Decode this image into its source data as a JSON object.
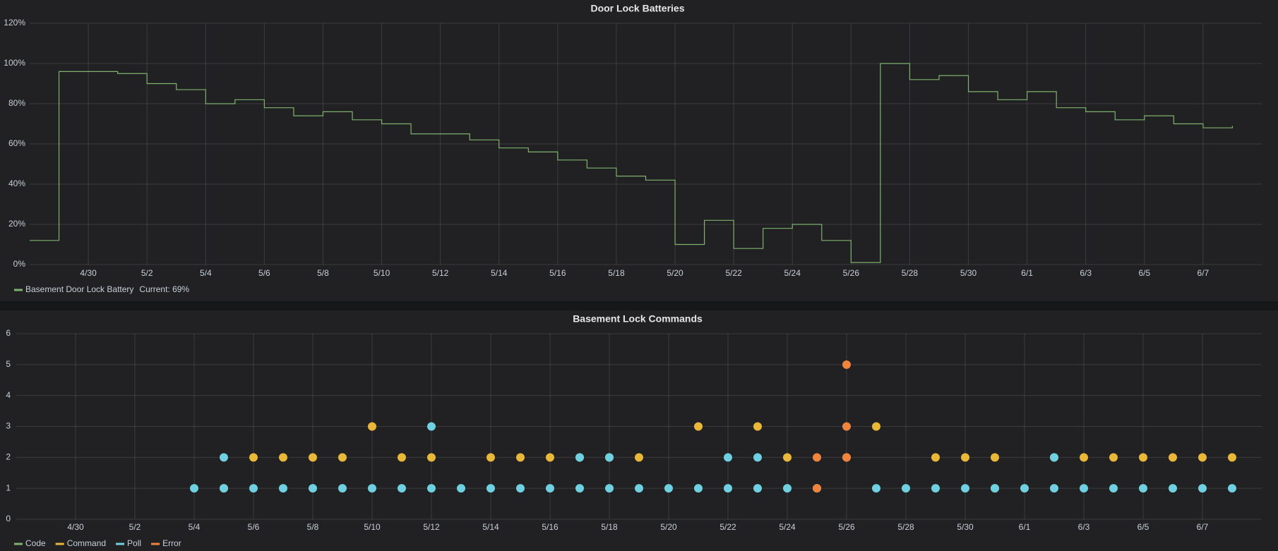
{
  "chart_data": [
    {
      "type": "line",
      "title": "Door Lock Batteries",
      "steps": true,
      "x": [
        "4/28",
        "4/29",
        "4/30",
        "5/1",
        "5/2",
        "5/3",
        "5/4",
        "5/5",
        "5/6",
        "5/7",
        "5/8",
        "5/9",
        "5/10",
        "5/11",
        "5/12",
        "5/13",
        "5/14",
        "5/15",
        "5/16",
        "5/17",
        "5/18",
        "5/19",
        "5/20",
        "5/21",
        "5/22",
        "5/23",
        "5/24",
        "5/25",
        "5/26",
        "5/27",
        "5/28",
        "5/29",
        "5/30",
        "5/31",
        "6/1",
        "6/2",
        "6/3",
        "6/4",
        "6/5",
        "6/6",
        "6/7",
        "6/8"
      ],
      "series": [
        {
          "name": "Basement Door Lock Battery",
          "color": "#7eb26d",
          "values": [
            12,
            96,
            96,
            95,
            90,
            87,
            80,
            82,
            78,
            74,
            76,
            72,
            70,
            65,
            65,
            62,
            58,
            56,
            52,
            48,
            44,
            42,
            10,
            22,
            8,
            18,
            20,
            12,
            1,
            100,
            92,
            94,
            86,
            82,
            86,
            78,
            76,
            72,
            74,
            70,
            68,
            69
          ]
        }
      ],
      "legend_current": "Current: 69%",
      "xlim": [
        "4/28",
        "6/9"
      ],
      "xticks": [
        "4/30",
        "5/2",
        "5/4",
        "5/6",
        "5/8",
        "5/10",
        "5/12",
        "5/14",
        "5/16",
        "5/18",
        "5/20",
        "5/22",
        "5/24",
        "5/26",
        "5/28",
        "5/30",
        "6/1",
        "6/3",
        "6/5",
        "6/7"
      ],
      "ylim": [
        0,
        120
      ],
      "yticks": [
        {
          "value": 0,
          "label": "0%"
        },
        {
          "value": 20,
          "label": "20%"
        },
        {
          "value": 40,
          "label": "40%"
        },
        {
          "value": 60,
          "label": "60%"
        },
        {
          "value": 80,
          "label": "80%"
        },
        {
          "value": 100,
          "label": "100%"
        },
        {
          "value": 120,
          "label": "120%"
        }
      ],
      "grid": true,
      "legend": "bottom-left"
    },
    {
      "type": "scatter",
      "title": "Basement Lock Commands",
      "series": [
        {
          "name": "Code",
          "color": "#7eb26d",
          "x": [],
          "values": []
        },
        {
          "name": "Command",
          "color": "#eab839",
          "x": [
            "5/5",
            "5/31",
            "5/6",
            "5/7",
            "5/8",
            "5/9",
            "5/11",
            "5/12",
            "5/14",
            "5/15",
            "5/16",
            "5/17",
            "5/18",
            "5/19",
            "5/24",
            "5/26",
            "5/29",
            "5/30",
            "5/31",
            "6/2",
            "6/3",
            "6/4",
            "6/5",
            "6/6",
            "6/7",
            "6/8",
            "5/10",
            "5/21",
            "5/23",
            "5/27"
          ],
          "values": [
            1,
            1,
            2,
            2,
            2,
            2,
            2,
            2,
            2,
            2,
            2,
            2,
            2,
            2,
            2,
            2,
            2,
            2,
            2,
            2,
            2,
            2,
            2,
            2,
            2,
            2,
            3,
            3,
            3,
            3
          ]
        },
        {
          "name": "Poll",
          "color": "#6ed0e0",
          "x": [
            "5/4",
            "5/5",
            "5/6",
            "5/7",
            "5/8",
            "5/9",
            "5/10",
            "5/11",
            "5/12",
            "5/13",
            "5/14",
            "5/15",
            "5/16",
            "5/17",
            "5/18",
            "5/19",
            "5/20",
            "5/21",
            "5/22",
            "5/23",
            "5/24",
            "5/25",
            "5/27",
            "5/28",
            "5/29",
            "5/30",
            "5/31",
            "6/1",
            "6/2",
            "6/3",
            "6/4",
            "6/5",
            "6/6",
            "6/7",
            "6/8",
            "5/5",
            "5/17",
            "5/18",
            "5/22",
            "5/23",
            "6/2",
            "5/12"
          ],
          "values": [
            1,
            1,
            1,
            1,
            1,
            1,
            1,
            1,
            1,
            1,
            1,
            1,
            1,
            1,
            1,
            1,
            1,
            1,
            1,
            1,
            1,
            1,
            1,
            1,
            1,
            1,
            1,
            1,
            1,
            1,
            1,
            1,
            1,
            1,
            1,
            2,
            2,
            2,
            2,
            2,
            2,
            3
          ]
        },
        {
          "name": "Error",
          "color": "#ef843c",
          "x": [
            "5/25",
            "5/25",
            "5/26",
            "5/26",
            "5/26"
          ],
          "values": [
            1,
            2,
            2,
            3,
            5
          ]
        }
      ],
      "xlim": [
        "4/28",
        "6/9"
      ],
      "xticks": [
        "4/30",
        "5/2",
        "5/4",
        "5/6",
        "5/8",
        "5/10",
        "5/12",
        "5/14",
        "5/16",
        "5/18",
        "5/20",
        "5/22",
        "5/24",
        "5/26",
        "5/28",
        "5/30",
        "6/1",
        "6/3",
        "6/5",
        "6/7"
      ],
      "ylim": [
        0,
        6
      ],
      "yticks": [
        0,
        1,
        2,
        3,
        4,
        5,
        6
      ],
      "grid": true,
      "legend": "bottom-left"
    }
  ]
}
